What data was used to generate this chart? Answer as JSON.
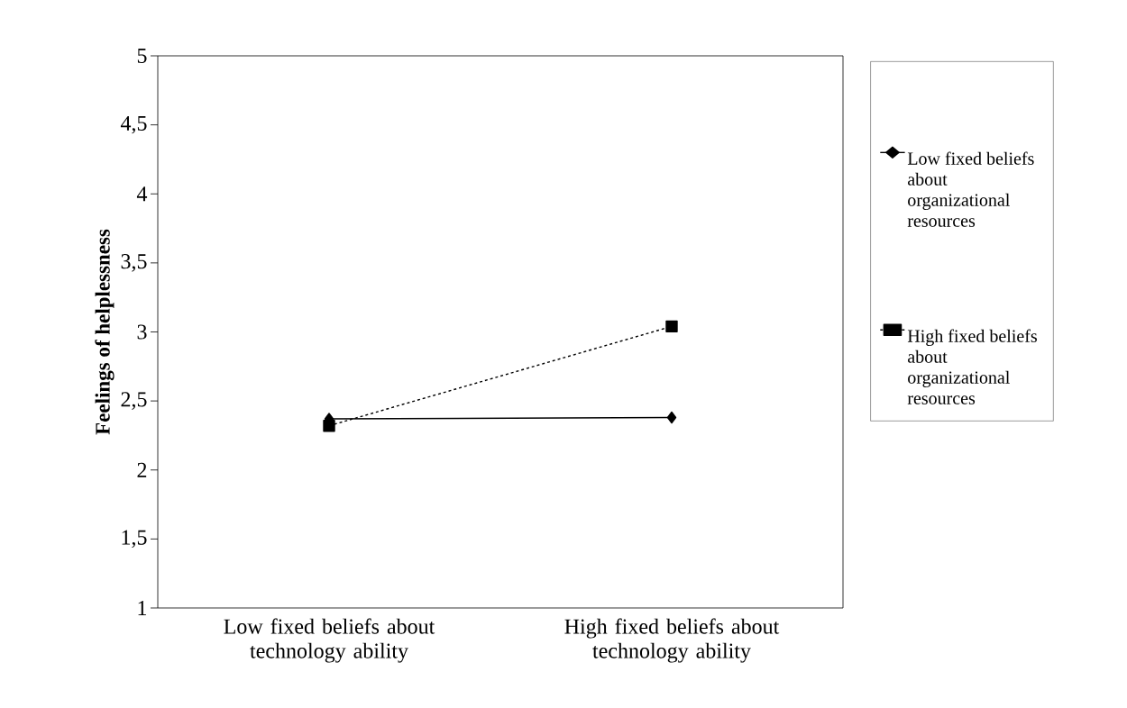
{
  "chart_data": {
    "type": "line",
    "ylabel": "Feelings of helplessness",
    "categories": [
      "Low fixed beliefs about technology ability",
      "High fixed beliefs about technology ability"
    ],
    "series": [
      {
        "name": "Low fixed beliefs about organizational resources",
        "color": "#000000",
        "values": [
          2.37,
          2.38
        ],
        "marker": "diamond",
        "line_style": "solid"
      },
      {
        "name": "High fixed beliefs about organizational resources",
        "color": "#000000",
        "values": [
          2.32,
          3.04
        ],
        "marker": "square",
        "line_style": "dashed"
      }
    ],
    "ylim": [
      1,
      5
    ],
    "yticks": [
      1,
      {
        "value": 1.5,
        "label": "1,5"
      },
      2,
      {
        "value": 2.5,
        "label": "2,5"
      },
      3,
      {
        "value": 3.5,
        "label": "3,5"
      },
      4,
      {
        "value": 4.5,
        "label": "4,5"
      },
      5
    ],
    "grid": false,
    "legend": "right"
  }
}
